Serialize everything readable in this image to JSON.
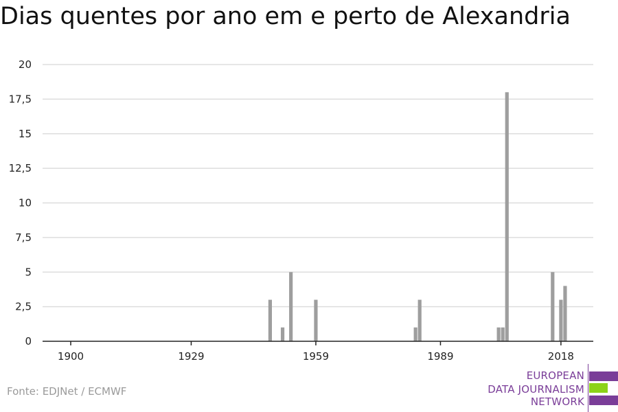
{
  "title": "Dias quentes por ano em e perto de Alexandria",
  "source": "Fonte: EDJNet / ECMWF",
  "logo": {
    "lines": [
      "EUROPEAN",
      "DATA JOURNALISM",
      "NETWORK"
    ],
    "colors": {
      "purple": "#7a3d98",
      "green": "#8cd219"
    }
  },
  "colors": {
    "bar": "#9e9e9e",
    "grid": "#dddddd",
    "axis": "#222222"
  },
  "chart_data": {
    "type": "bar",
    "title": "Dias quentes por ano em e perto de Alexandria",
    "xlabel": "",
    "ylabel": "",
    "xlim": [
      1900,
      2022
    ],
    "ylim": [
      0,
      20
    ],
    "x_ticks": [
      1900,
      1929,
      1959,
      1989,
      2018
    ],
    "y_ticks": [
      0,
      2.5,
      5,
      7.5,
      10,
      12.5,
      15,
      17.5,
      20
    ],
    "y_tick_labels": [
      "0",
      "2,5",
      "5",
      "7,5",
      "10",
      "12,5",
      "15",
      "17,5",
      "20"
    ],
    "grid": true,
    "years": [
      1948,
      1951,
      1953,
      1959,
      1983,
      1984,
      2003,
      2004,
      2005,
      2016,
      2018,
      2019
    ],
    "values": [
      3,
      1,
      5,
      3,
      1,
      3,
      1,
      1,
      18,
      5,
      3,
      4
    ]
  }
}
